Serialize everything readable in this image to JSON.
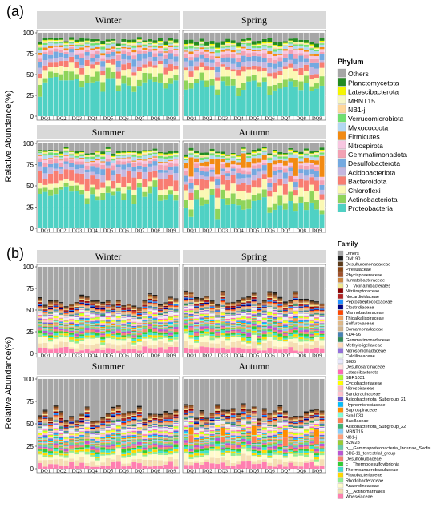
{
  "panels": [
    {
      "label": "(a)",
      "ylabel": "Relative Abundance(%)",
      "yticks": [
        "0",
        "25",
        "50",
        "75",
        "100"
      ],
      "legend_title": "Phylum",
      "facets": [
        "Winter",
        "Spring",
        "Summer",
        "Autumn"
      ],
      "sites": [
        "DQ1",
        "DQ2",
        "DQ3",
        "DQ4",
        "DQ5",
        "DQ6",
        "DQ7",
        "DQ8",
        "DQ9"
      ],
      "legend": [
        {
          "name": "Others",
          "color": "#a6a6a6"
        },
        {
          "name": "Planctomycetota",
          "color": "#238b22"
        },
        {
          "name": "Latescibacterota",
          "color": "#f5f500"
        },
        {
          "name": "MBNT15",
          "color": "#f6f6c5"
        },
        {
          "name": "NB1-j",
          "color": "#ffd79a"
        },
        {
          "name": "Verrucomicrobiota",
          "color": "#6fe06f"
        },
        {
          "name": "Myxococcota",
          "color": "#b3d7f2"
        },
        {
          "name": "Firmicutes",
          "color": "#f28a12"
        },
        {
          "name": "Nitrospirota",
          "color": "#f7c6e0"
        },
        {
          "name": "Gemmatimonadota",
          "color": "#f3a1b3"
        },
        {
          "name": "Desulfobacterota",
          "color": "#74a9e0"
        },
        {
          "name": "Acidobacteriota",
          "color": "#c4b7e0"
        },
        {
          "name": "Bacteroidota",
          "color": "#f87d72"
        },
        {
          "name": "Chloroflexi",
          "color": "#fbf8b4"
        },
        {
          "name": "Actinobacteriota",
          "color": "#8fd45a"
        },
        {
          "name": "Proteobacteria",
          "color": "#4fd1c4"
        }
      ]
    },
    {
      "label": "(b)",
      "ylabel": "Relative Abundance(%)",
      "yticks": [
        "0",
        "25",
        "50",
        "75",
        "100"
      ],
      "legend_title": "Family",
      "facets": [
        "Winter",
        "Spring",
        "Summer",
        "Autumn"
      ],
      "sites": [
        "DQ1",
        "DQ2",
        "DQ3",
        "DQ4",
        "DQ5",
        "DQ6",
        "DQ7",
        "DQ8",
        "DQ9"
      ],
      "legend": [
        {
          "name": "Others",
          "color": "#a6a6a6"
        },
        {
          "name": "OM190",
          "color": "#1a1a1a"
        },
        {
          "name": "Desulfuromonadaceae",
          "color": "#5a3a1a"
        },
        {
          "name": "Pirellulaceae",
          "color": "#8b4513"
        },
        {
          "name": "Phycisphaeraceae",
          "color": "#a0522d"
        },
        {
          "name": "Ilumatobacteraceae",
          "color": "#cd853f"
        },
        {
          "name": "o__Vicinamibacterales",
          "color": "#f0e68c"
        },
        {
          "name": "Nitriliruptoraceae",
          "color": "#8b0000"
        },
        {
          "name": "Nocardioidaceae",
          "color": "#b22222"
        },
        {
          "name": "Peptostreptococcaceae",
          "color": "#1e90ff"
        },
        {
          "name": "Clostridiaceae",
          "color": "#000080"
        },
        {
          "name": "Marinobacteraceae",
          "color": "#ff4500"
        },
        {
          "name": "Thioalkalispiraceae",
          "color": "#f4a460"
        },
        {
          "name": "Sulfurovaceae",
          "color": "#deb887"
        },
        {
          "name": "Comamonadaceae",
          "color": "#d2b48c"
        },
        {
          "name": "KD4-96",
          "color": "#4682b4"
        },
        {
          "name": "Gemmatimonadaceae",
          "color": "#2e8b57"
        },
        {
          "name": "Methyloligellaceae",
          "color": "#ffdab9"
        },
        {
          "name": "Nitrosomonadaceae",
          "color": "#9370db"
        },
        {
          "name": "Caldilineaceae",
          "color": "#f0fff0"
        },
        {
          "name": "S085",
          "color": "#e6e6fa"
        },
        {
          "name": "Desulfosarcinaceae",
          "color": "#ffe4e1"
        },
        {
          "name": "Latescibacterota",
          "color": "#ff69b4"
        },
        {
          "name": "SBR1031",
          "color": "#adff2f"
        },
        {
          "name": "Cyclobacteriaceae",
          "color": "#ffff00"
        },
        {
          "name": "Nitrospiraceae",
          "color": "#ffb6c1"
        },
        {
          "name": "Sandaracinaceae",
          "color": "#ffc0cb"
        },
        {
          "name": "Acidobacteriota_Subgroup_21",
          "color": "#6a5acd"
        },
        {
          "name": "Hyphomicrobiaceae",
          "color": "#00bfff"
        },
        {
          "name": "Saprospiraceae",
          "color": "#ff8c00"
        },
        {
          "name": "Sva1033",
          "color": "#7fffd4"
        },
        {
          "name": "Bacillaceae",
          "color": "#ff7f50"
        },
        {
          "name": "Acidobacteriota_Subgroup_22",
          "color": "#3cb371"
        },
        {
          "name": "MBNT15",
          "color": "#87cefa"
        },
        {
          "name": "NB1-j",
          "color": "#ffa07a"
        },
        {
          "name": "B2M28",
          "color": "#9acd32"
        },
        {
          "name": "o__Gammaproteobacteria_Incertae_Sedis",
          "color": "#66cdaa"
        },
        {
          "name": "BD2-11_terrestrial_group",
          "color": "#ba55d3"
        },
        {
          "name": "Desulfobulbaceae",
          "color": "#fa8072"
        },
        {
          "name": "c__Thermodesulfovibrionia",
          "color": "#32cd32"
        },
        {
          "name": "Thermoanaerobaculaceae",
          "color": "#40e0d0"
        },
        {
          "name": "Flavobacteriaceae",
          "color": "#ffd700"
        },
        {
          "name": "Rhodobacteraceae",
          "color": "#90ee90"
        },
        {
          "name": "Anaerolineaceae",
          "color": "#fffacd"
        },
        {
          "name": "o__Actinomarinales",
          "color": "#f5deb3"
        },
        {
          "name": "Woeseiaceae",
          "color": "#ff7fb0"
        }
      ]
    }
  ],
  "chart_data": [
    {
      "type": "bar",
      "title": "(a)",
      "xlabel": "",
      "ylabel": "Relative Abundance(%)",
      "ylim": [
        0,
        100
      ],
      "stacked": true,
      "facets": [
        "Winter",
        "Spring",
        "Summer",
        "Autumn"
      ],
      "categories": [
        "DQ1",
        "DQ2",
        "DQ3",
        "DQ4",
        "DQ5",
        "DQ6",
        "DQ7",
        "DQ8",
        "DQ9"
      ],
      "replicates_per_site": 3,
      "grid": true,
      "legend_position": "right",
      "series": [
        {
          "name": "Proteobacteria",
          "mean_by_facet": {
            "Winter": 37,
            "Spring": 35,
            "Summer": 38,
            "Autumn": 30
          }
        },
        {
          "name": "Actinobacteriota",
          "mean_by_facet": {
            "Winter": 9,
            "Spring": 8,
            "Summer": 7,
            "Autumn": 9
          }
        },
        {
          "name": "Chloroflexi",
          "mean_by_facet": {
            "Winter": 9,
            "Spring": 10,
            "Summer": 6,
            "Autumn": 10
          }
        },
        {
          "name": "Bacteroidota",
          "mean_by_facet": {
            "Winter": 6,
            "Spring": 5,
            "Summer": 12,
            "Autumn": 9
          }
        },
        {
          "name": "Acidobacteriota",
          "mean_by_facet": {
            "Winter": 5,
            "Spring": 5,
            "Summer": 6,
            "Autumn": 6
          }
        },
        {
          "name": "Desulfobacterota",
          "mean_by_facet": {
            "Winter": 6,
            "Spring": 6,
            "Summer": 5,
            "Autumn": 5
          }
        },
        {
          "name": "Gemmatimonadota",
          "mean_by_facet": {
            "Winter": 4,
            "Spring": 4,
            "Summer": 4,
            "Autumn": 4
          }
        },
        {
          "name": "Nitrospirota",
          "mean_by_facet": {
            "Winter": 3,
            "Spring": 3,
            "Summer": 3,
            "Autumn": 3
          }
        },
        {
          "name": "Firmicutes",
          "mean_by_facet": {
            "Winter": 2,
            "Spring": 2,
            "Summer": 1,
            "Autumn": 5
          }
        },
        {
          "name": "Myxococcota",
          "mean_by_facet": {
            "Winter": 3,
            "Spring": 3,
            "Summer": 3,
            "Autumn": 3
          }
        },
        {
          "name": "Verrucomicrobiota",
          "mean_by_facet": {
            "Winter": 2,
            "Spring": 2,
            "Summer": 2,
            "Autumn": 2
          }
        },
        {
          "name": "NB1-j",
          "mean_by_facet": {
            "Winter": 1,
            "Spring": 1,
            "Summer": 1,
            "Autumn": 1
          }
        },
        {
          "name": "MBNT15",
          "mean_by_facet": {
            "Winter": 1,
            "Spring": 1,
            "Summer": 1,
            "Autumn": 1
          }
        },
        {
          "name": "Latescibacterota",
          "mean_by_facet": {
            "Winter": 1,
            "Spring": 1,
            "Summer": 1,
            "Autumn": 1
          }
        },
        {
          "name": "Planctomycetota",
          "mean_by_facet": {
            "Winter": 3,
            "Spring": 4,
            "Summer": 2,
            "Autumn": 2
          }
        },
        {
          "name": "Others",
          "mean_by_facet": {
            "Winter": 8,
            "Spring": 10,
            "Summer": 8,
            "Autumn": 9
          }
        }
      ]
    },
    {
      "type": "bar",
      "title": "(b)",
      "xlabel": "",
      "ylabel": "Relative Abundance(%)",
      "ylim": [
        0,
        100
      ],
      "stacked": true,
      "facets": [
        "Winter",
        "Spring",
        "Summer",
        "Autumn"
      ],
      "categories": [
        "DQ1",
        "DQ2",
        "DQ3",
        "DQ4",
        "DQ5",
        "DQ6",
        "DQ7",
        "DQ8",
        "DQ9"
      ],
      "replicates_per_site": 3,
      "grid": true,
      "legend_position": "right",
      "series_note_top_others_mean_by_facet": {
        "Winter": 38,
        "Spring": 35,
        "Summer": 38,
        "Autumn": 36
      }
    }
  ]
}
